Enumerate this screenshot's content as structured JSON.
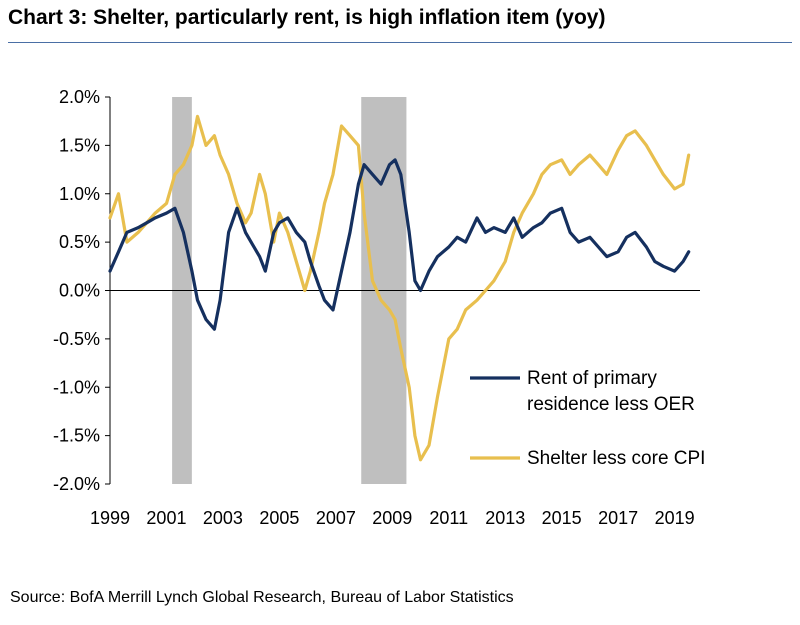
{
  "chart_data": {
    "type": "line",
    "title": "Chart 3: Shelter, particularly rent, is high inflation item (yoy)",
    "source": "Source: BofA Merrill Lynch Global Research, Bureau of Labor Statistics",
    "xlabel": "",
    "ylabel": "",
    "xlim": [
      1999,
      2019.9
    ],
    "ylim": [
      -2.0,
      2.0
    ],
    "x_ticks": [
      1999,
      2001,
      2003,
      2005,
      2007,
      2009,
      2011,
      2013,
      2015,
      2017,
      2019
    ],
    "x_tick_labels": [
      "1999",
      "2001",
      "2003",
      "2005",
      "2007",
      "2009",
      "2011",
      "2013",
      "2015",
      "2017",
      "2019"
    ],
    "y_ticks": [
      -2.0,
      -1.5,
      -1.0,
      -0.5,
      0.0,
      0.5,
      1.0,
      1.5,
      2.0
    ],
    "y_tick_labels": [
      "-2.0%",
      "-1.5%",
      "-1.0%",
      "-0.5%",
      "0.0%",
      "0.5%",
      "1.0%",
      "1.5%",
      "2.0%"
    ],
    "grid": false,
    "legend_position": "bottom-right",
    "recessions": [
      [
        2001.2,
        2001.9
      ],
      [
        2007.9,
        2009.5
      ]
    ],
    "recession_color": "#bfbfbf",
    "series": [
      {
        "name": "Rent of primary residence less OER",
        "color": "#15305f",
        "x": [
          1999.0,
          1999.3,
          1999.6,
          2000.0,
          2000.3,
          2000.6,
          2001.0,
          2001.3,
          2001.6,
          2001.9,
          2002.1,
          2002.4,
          2002.7,
          2002.9,
          2003.2,
          2003.5,
          2003.8,
          2004.0,
          2004.3,
          2004.5,
          2004.8,
          2005.0,
          2005.3,
          2005.6,
          2005.9,
          2006.1,
          2006.4,
          2006.6,
          2006.9,
          2007.2,
          2007.5,
          2007.8,
          2008.0,
          2008.3,
          2008.6,
          2008.9,
          2009.1,
          2009.3,
          2009.6,
          2009.8,
          2010.0,
          2010.3,
          2010.6,
          2011.0,
          2011.3,
          2011.6,
          2012.0,
          2012.3,
          2012.6,
          2013.0,
          2013.3,
          2013.6,
          2014.0,
          2014.3,
          2014.6,
          2015.0,
          2015.3,
          2015.6,
          2016.0,
          2016.3,
          2016.6,
          2017.0,
          2017.3,
          2017.6,
          2018.0,
          2018.3,
          2018.6,
          2019.0,
          2019.3,
          2019.5
        ],
        "values": [
          0.2,
          0.4,
          0.6,
          0.65,
          0.7,
          0.75,
          0.8,
          0.85,
          0.6,
          0.2,
          -0.1,
          -0.3,
          -0.4,
          -0.1,
          0.6,
          0.85,
          0.6,
          0.5,
          0.35,
          0.2,
          0.6,
          0.7,
          0.75,
          0.6,
          0.5,
          0.3,
          0.05,
          -0.1,
          -0.2,
          0.2,
          0.6,
          1.1,
          1.3,
          1.2,
          1.1,
          1.3,
          1.35,
          1.2,
          0.6,
          0.1,
          0.0,
          0.2,
          0.35,
          0.45,
          0.55,
          0.5,
          0.75,
          0.6,
          0.65,
          0.6,
          0.75,
          0.55,
          0.65,
          0.7,
          0.8,
          0.85,
          0.6,
          0.5,
          0.55,
          0.45,
          0.35,
          0.4,
          0.55,
          0.6,
          0.45,
          0.3,
          0.25,
          0.2,
          0.3,
          0.4
        ]
      },
      {
        "name": "Shelter less core CPI",
        "color": "#e8bf4e",
        "x": [
          1999.0,
          1999.3,
          1999.6,
          2000.0,
          2000.3,
          2000.6,
          2001.0,
          2001.3,
          2001.6,
          2001.9,
          2002.1,
          2002.4,
          2002.7,
          2002.9,
          2003.2,
          2003.5,
          2003.8,
          2004.0,
          2004.3,
          2004.5,
          2004.8,
          2005.0,
          2005.3,
          2005.6,
          2005.9,
          2006.1,
          2006.4,
          2006.6,
          2006.9,
          2007.2,
          2007.5,
          2007.8,
          2008.0,
          2008.3,
          2008.6,
          2008.9,
          2009.1,
          2009.3,
          2009.6,
          2009.8,
          2010.0,
          2010.3,
          2010.6,
          2011.0,
          2011.3,
          2011.6,
          2012.0,
          2012.3,
          2012.6,
          2013.0,
          2013.3,
          2013.6,
          2014.0,
          2014.3,
          2014.6,
          2015.0,
          2015.3,
          2015.6,
          2016.0,
          2016.3,
          2016.6,
          2017.0,
          2017.3,
          2017.6,
          2018.0,
          2018.3,
          2018.6,
          2019.0,
          2019.3,
          2019.5
        ],
        "values": [
          0.75,
          1.0,
          0.5,
          0.6,
          0.7,
          0.8,
          0.9,
          1.2,
          1.3,
          1.5,
          1.8,
          1.5,
          1.6,
          1.4,
          1.2,
          0.9,
          0.7,
          0.8,
          1.2,
          1.0,
          0.5,
          0.8,
          0.6,
          0.3,
          0.0,
          0.2,
          0.6,
          0.9,
          1.2,
          1.7,
          1.6,
          1.5,
          0.8,
          0.1,
          -0.1,
          -0.2,
          -0.3,
          -0.6,
          -1.0,
          -1.5,
          -1.75,
          -1.6,
          -1.1,
          -0.5,
          -0.4,
          -0.2,
          -0.1,
          0.0,
          0.1,
          0.3,
          0.6,
          0.8,
          1.0,
          1.2,
          1.3,
          1.35,
          1.2,
          1.3,
          1.4,
          1.3,
          1.2,
          1.45,
          1.6,
          1.65,
          1.5,
          1.35,
          1.2,
          1.05,
          1.1,
          1.4
        ]
      }
    ]
  }
}
